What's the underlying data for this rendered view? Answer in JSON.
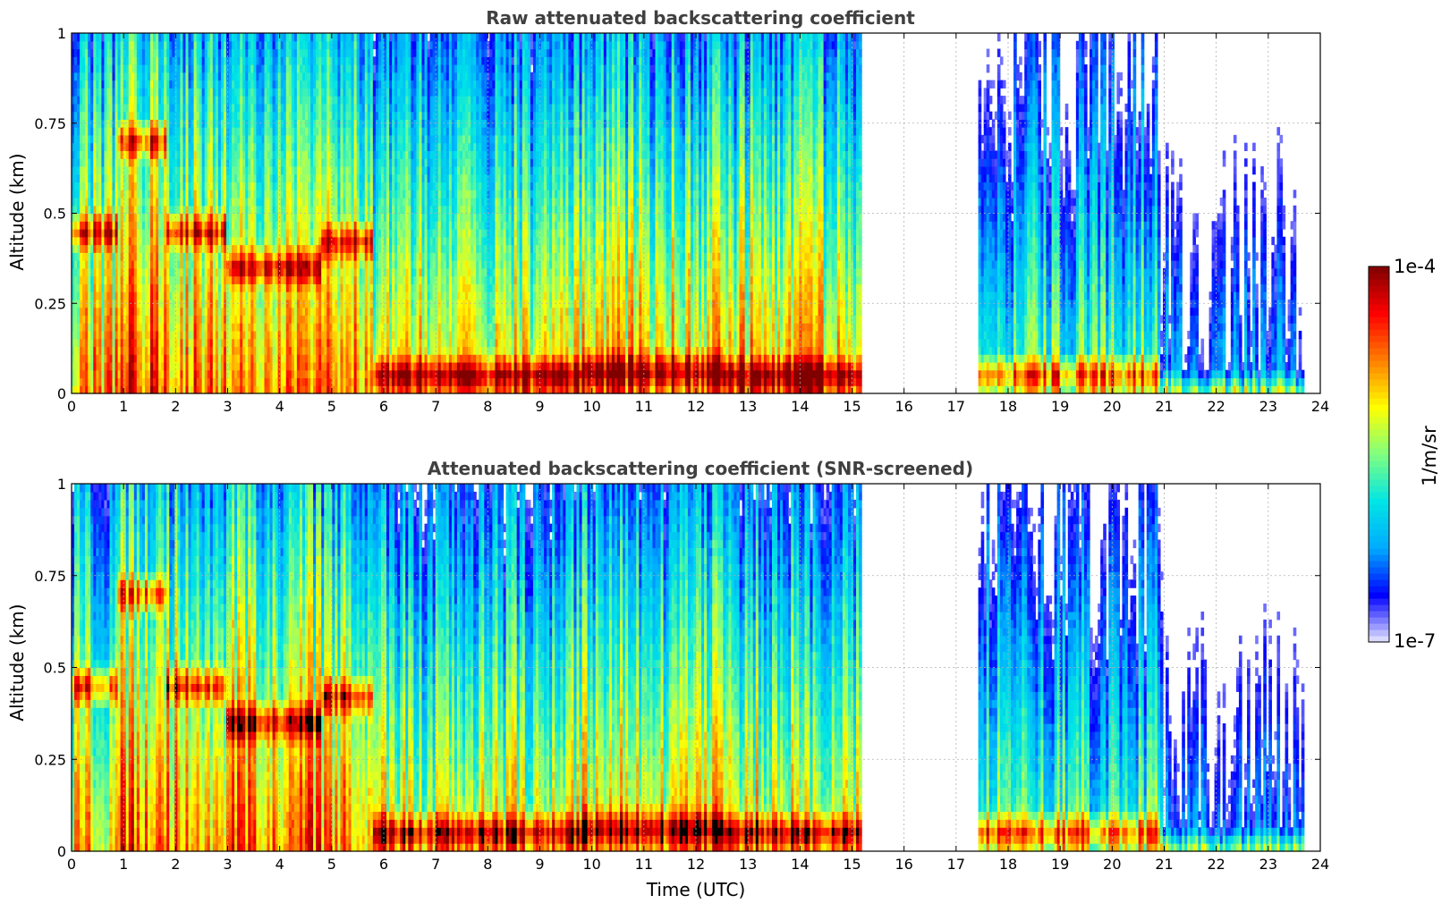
{
  "chart_data": [
    {
      "type": "heatmap",
      "title": "Raw attenuated backscattering coefficient",
      "xlabel": "",
      "ylabel": "Altitude (km)",
      "xlim": [
        0,
        24
      ],
      "ylim": [
        0,
        1
      ],
      "x_ticks": [
        "0",
        "1",
        "2",
        "3",
        "4",
        "5",
        "6",
        "7",
        "8",
        "9",
        "10",
        "11",
        "12",
        "13",
        "14",
        "15",
        "16",
        "17",
        "18",
        "19",
        "20",
        "21",
        "22",
        "23",
        "24"
      ],
      "y_ticks": [
        "0",
        "0.25",
        "0.5",
        "0.75",
        "1"
      ],
      "grid": true,
      "data_gaps_hours": [
        [
          15.2,
          17.45
        ],
        [
          23.7,
          24
        ]
      ],
      "segments": [
        {
          "time": [
            0.0,
            0.9
          ],
          "top_level": 0.72,
          "layer_altitude": 0.45
        },
        {
          "time": [
            0.9,
            1.8
          ],
          "top_level": 0.82,
          "layer_altitude": 0.7
        },
        {
          "time": [
            1.8,
            3.0
          ],
          "top_level": 0.76,
          "layer_altitude": 0.45
        },
        {
          "time": [
            3.0,
            4.8
          ],
          "top_level": 0.78,
          "layer_altitude": 0.35
        },
        {
          "time": [
            4.8,
            5.8
          ],
          "top_level": 0.75,
          "layer_altitude": 0.42
        },
        {
          "time": [
            5.8,
            9.8
          ],
          "top_level": 0.65,
          "layer_altitude": 0.05
        },
        {
          "time": [
            9.8,
            12.5
          ],
          "top_level": 0.7,
          "layer_altitude": 0.06
        },
        {
          "time": [
            12.5,
            15.2
          ],
          "top_level": 0.7,
          "layer_altitude": 0.05
        },
        {
          "time": [
            17.45,
            20.9
          ],
          "top_level": 0.48,
          "layer_altitude": 0.05
        },
        {
          "time": [
            20.9,
            23.7
          ],
          "top_level": 0.2,
          "layer_altitude": 0.0
        }
      ]
    },
    {
      "type": "heatmap",
      "title": "Attenuated backscattering coefficient (SNR-screened)",
      "xlabel": "Time (UTC)",
      "ylabel": "Altitude (km)",
      "xlim": [
        0,
        24
      ],
      "ylim": [
        0,
        1
      ],
      "x_ticks": [
        "0",
        "1",
        "2",
        "3",
        "4",
        "5",
        "6",
        "7",
        "8",
        "9",
        "10",
        "11",
        "12",
        "13",
        "14",
        "15",
        "16",
        "17",
        "18",
        "19",
        "20",
        "21",
        "22",
        "23",
        "24"
      ],
      "y_ticks": [
        "0",
        "0.25",
        "0.5",
        "0.75",
        "1"
      ],
      "grid": true,
      "data_gaps_hours": [
        [
          15.2,
          17.45
        ],
        [
          23.7,
          24
        ]
      ],
      "saturated_color": "#000000",
      "segments": [
        {
          "time": [
            0.0,
            0.9
          ],
          "top_level": 0.68,
          "layer_altitude": 0.45
        },
        {
          "time": [
            0.9,
            1.8
          ],
          "top_level": 0.82,
          "layer_altitude": 0.7
        },
        {
          "time": [
            1.8,
            3.0
          ],
          "top_level": 0.76,
          "layer_altitude": 0.45
        },
        {
          "time": [
            3.0,
            4.8
          ],
          "top_level": 0.78,
          "layer_altitude": 0.35
        },
        {
          "time": [
            4.8,
            5.8
          ],
          "top_level": 0.75,
          "layer_altitude": 0.42
        },
        {
          "time": [
            5.8,
            9.8
          ],
          "top_level": 0.62,
          "layer_altitude": 0.05
        },
        {
          "time": [
            9.8,
            12.5
          ],
          "top_level": 0.68,
          "layer_altitude": 0.06
        },
        {
          "time": [
            12.5,
            15.2
          ],
          "top_level": 0.65,
          "layer_altitude": 0.05
        },
        {
          "time": [
            17.45,
            20.9
          ],
          "top_level": 0.48,
          "layer_altitude": 0.05
        },
        {
          "time": [
            20.9,
            23.7
          ],
          "top_level": 0.2,
          "layer_altitude": 0.0
        }
      ]
    }
  ],
  "colorbar": {
    "label": "1/m/sr",
    "max_label": "1e-4",
    "min_label": "1e-7",
    "scale": "log",
    "colormap": "jet",
    "stops": [
      "#e8e8ff",
      "#0000ff",
      "#00aaff",
      "#00e5e5",
      "#80ff80",
      "#ffff00",
      "#ff8000",
      "#ff0000",
      "#800000"
    ]
  }
}
